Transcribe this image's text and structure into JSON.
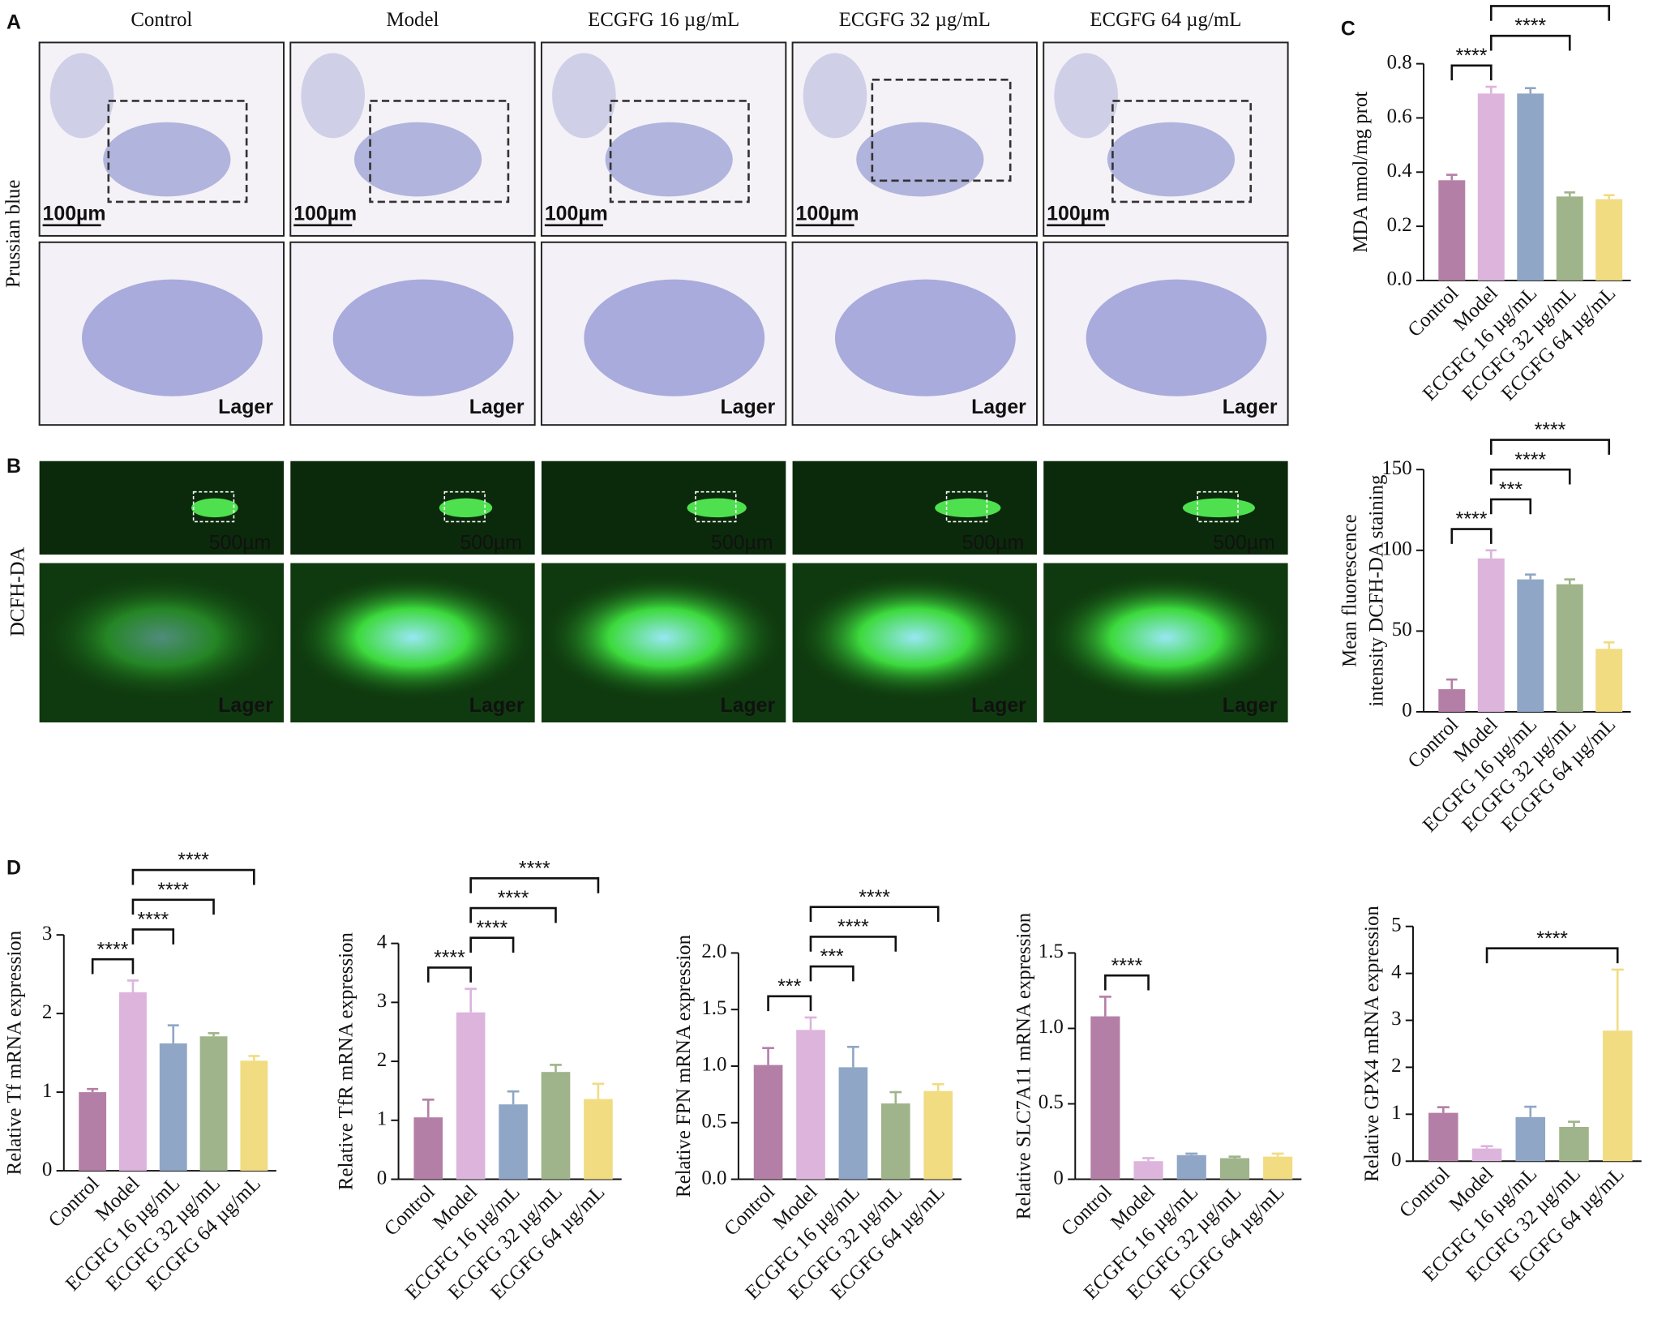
{
  "panel_labels": [
    "A",
    "B",
    "C",
    "D"
  ],
  "microscopy": {
    "columns": [
      "Control",
      "Model",
      "ECGFG 16 µg/mL",
      "ECGFG 32 µg/mL",
      "ECGFG 64 µg/mL"
    ],
    "prussian_blue": {
      "label": "Prussian blue",
      "scale_bar": "100µm",
      "inset": "Lager"
    },
    "dcfh": {
      "label": "DCFH-DA",
      "scale_bar": "500µm",
      "inset": "Lager"
    }
  },
  "chart_data": [
    {
      "type": "bar",
      "ylabel": "MDA nmol/mg prot",
      "categories": [
        "Control",
        "Model",
        "ECGFG 16 µg/mL",
        "ECGFG 32 µg/mL",
        "ECGFG 64 µg/mL"
      ],
      "values": [
        0.37,
        0.69,
        0.69,
        0.31,
        0.3
      ],
      "errors": [
        0.02,
        0.025,
        0.02,
        0.015,
        0.015
      ],
      "colors": [
        "#b47fa6",
        "#dcb4dc",
        "#8fa6c6",
        "#9fb48a",
        "#f1dc82"
      ],
      "ylim": [
        0,
        0.8
      ],
      "yticks": [
        {
          "value": 0,
          "label": "0.0"
        },
        0.2,
        0.4,
        0.6,
        0.8
      ],
      "brackets": [
        {
          "label": "****",
          "categories": [
            0,
            1
          ]
        },
        {
          "label": "****",
          "categories": [
            1,
            3
          ]
        },
        {
          "label": "****",
          "categories": [
            1,
            4
          ]
        }
      ]
    },
    {
      "type": "bar",
      "ylabel": [
        "Mean fluorescence",
        "intensity DCFH-DA staining"
      ],
      "categories": [
        "Control",
        "Model",
        "ECGFG 16 µg/mL",
        "ECGFG 32 µg/mL",
        "ECGFG 64 µg/mL"
      ],
      "values": [
        14,
        95,
        82,
        79,
        39
      ],
      "errors": [
        6,
        5,
        3,
        3,
        4
      ],
      "colors": [
        "#b47fa6",
        "#dcb4dc",
        "#8fa6c6",
        "#9fb48a",
        "#f1dc82"
      ],
      "ylim": [
        0,
        150
      ],
      "yticks": [
        0,
        50,
        100,
        150
      ],
      "brackets": [
        {
          "label": "****",
          "categories": [
            0,
            1
          ]
        },
        {
          "label": "***",
          "categories": [
            1,
            2
          ]
        },
        {
          "label": "****",
          "categories": [
            1,
            3
          ]
        },
        {
          "label": "****",
          "categories": [
            1,
            4
          ]
        }
      ]
    },
    {
      "type": "bar",
      "ylabel": "Relative Tf mRNA expression",
      "categories": [
        "Control",
        "Model",
        "ECGFG 16 µg/mL",
        "ECGFG 32 µg/mL",
        "ECGFG 64 µg/mL"
      ],
      "values": [
        1.0,
        2.27,
        1.62,
        1.71,
        1.4
      ],
      "errors": [
        0.04,
        0.15,
        0.23,
        0.04,
        0.06
      ],
      "colors": [
        "#b47fa6",
        "#dcb4dc",
        "#8fa6c6",
        "#9fb48a",
        "#f1dc82"
      ],
      "ylim": [
        0,
        3
      ],
      "yticks": [
        0,
        1,
        2,
        3
      ],
      "brackets": [
        {
          "label": "****",
          "categories": [
            0,
            1
          ]
        },
        {
          "label": "****",
          "categories": [
            1,
            2
          ]
        },
        {
          "label": "****",
          "categories": [
            1,
            3
          ]
        },
        {
          "label": "****",
          "categories": [
            1,
            4
          ]
        }
      ]
    },
    {
      "type": "bar",
      "ylabel": "Relative TfR mRNA expression",
      "categories": [
        "Control",
        "Model",
        "ECGFG 16 µg/mL",
        "ECGFG 32 µg/mL",
        "ECGFG 64 µg/mL"
      ],
      "values": [
        1.05,
        2.83,
        1.27,
        1.82,
        1.36
      ],
      "errors": [
        0.3,
        0.4,
        0.22,
        0.12,
        0.26
      ],
      "colors": [
        "#b47fa6",
        "#dcb4dc",
        "#8fa6c6",
        "#9fb48a",
        "#f1dc82"
      ],
      "ylim": [
        0,
        4
      ],
      "yticks": [
        0,
        1,
        2,
        3,
        4
      ],
      "brackets": [
        {
          "label": "****",
          "categories": [
            0,
            1
          ]
        },
        {
          "label": "****",
          "categories": [
            1,
            2
          ]
        },
        {
          "label": "****",
          "categories": [
            1,
            3
          ]
        },
        {
          "label": "****",
          "categories": [
            1,
            4
          ]
        }
      ]
    },
    {
      "type": "bar",
      "ylabel": "Relative FPN mRNA expression",
      "categories": [
        "Control",
        "Model",
        "ECGFG 16 µg/mL",
        "ECGFG 32 µg/mL",
        "ECGFG 64 µg/mL"
      ],
      "values": [
        1.01,
        1.32,
        0.99,
        0.67,
        0.78
      ],
      "errors": [
        0.15,
        0.11,
        0.18,
        0.1,
        0.06
      ],
      "colors": [
        "#b47fa6",
        "#dcb4dc",
        "#8fa6c6",
        "#9fb48a",
        "#f1dc82"
      ],
      "ylim": [
        0,
        2
      ],
      "yticks": [
        {
          "value": 0,
          "label": "0.0"
        },
        {
          "value": 0.5,
          "label": "0.5"
        },
        {
          "value": 1,
          "label": "1.0"
        },
        {
          "value": 1.5,
          "label": "1.5"
        },
        {
          "value": 2,
          "label": "2.0"
        }
      ],
      "brackets": [
        {
          "label": "***",
          "categories": [
            0,
            1
          ]
        },
        {
          "label": "***",
          "categories": [
            1,
            2
          ]
        },
        {
          "label": "****",
          "categories": [
            1,
            3
          ]
        },
        {
          "label": "****",
          "categories": [
            1,
            4
          ]
        }
      ]
    },
    {
      "type": "bar",
      "ylabel": "Relative SLC7A11 mRNA expression",
      "categories": [
        "Control",
        "Model",
        "ECGFG 16 µg/mL",
        "ECGFG 32 µg/mL",
        "ECGFG 64 µg/mL"
      ],
      "values": [
        1.08,
        0.12,
        0.16,
        0.14,
        0.15
      ],
      "errors": [
        0.13,
        0.02,
        0.01,
        0.01,
        0.02
      ],
      "colors": [
        "#b47fa6",
        "#dcb4dc",
        "#8fa6c6",
        "#9fb48a",
        "#f1dc82"
      ],
      "ylim": [
        0,
        1.5
      ],
      "yticks": [
        0,
        0.5,
        {
          "value": 1,
          "label": "1.0"
        },
        1.5
      ],
      "brackets": [
        {
          "label": "****",
          "categories": [
            0,
            1
          ]
        }
      ]
    },
    {
      "type": "bar",
      "ylabel": "Relative GPX4 mRNA expression",
      "categories": [
        "Control",
        "Model",
        "ECGFG 16 µg/mL",
        "ECGFG 32 µg/mL",
        "ECGFG 64 µg/mL"
      ],
      "values": [
        1.03,
        0.27,
        0.94,
        0.73,
        2.78
      ],
      "errors": [
        0.12,
        0.05,
        0.22,
        0.11,
        1.3
      ],
      "colors": [
        "#b47fa6",
        "#dcb4dc",
        "#8fa6c6",
        "#9fb48a",
        "#f1dc82"
      ],
      "ylim": [
        0,
        5
      ],
      "yticks": [
        0,
        1,
        2,
        3,
        4,
        5
      ],
      "brackets": [
        {
          "label": "****",
          "categories": [
            1,
            4
          ]
        }
      ]
    }
  ]
}
